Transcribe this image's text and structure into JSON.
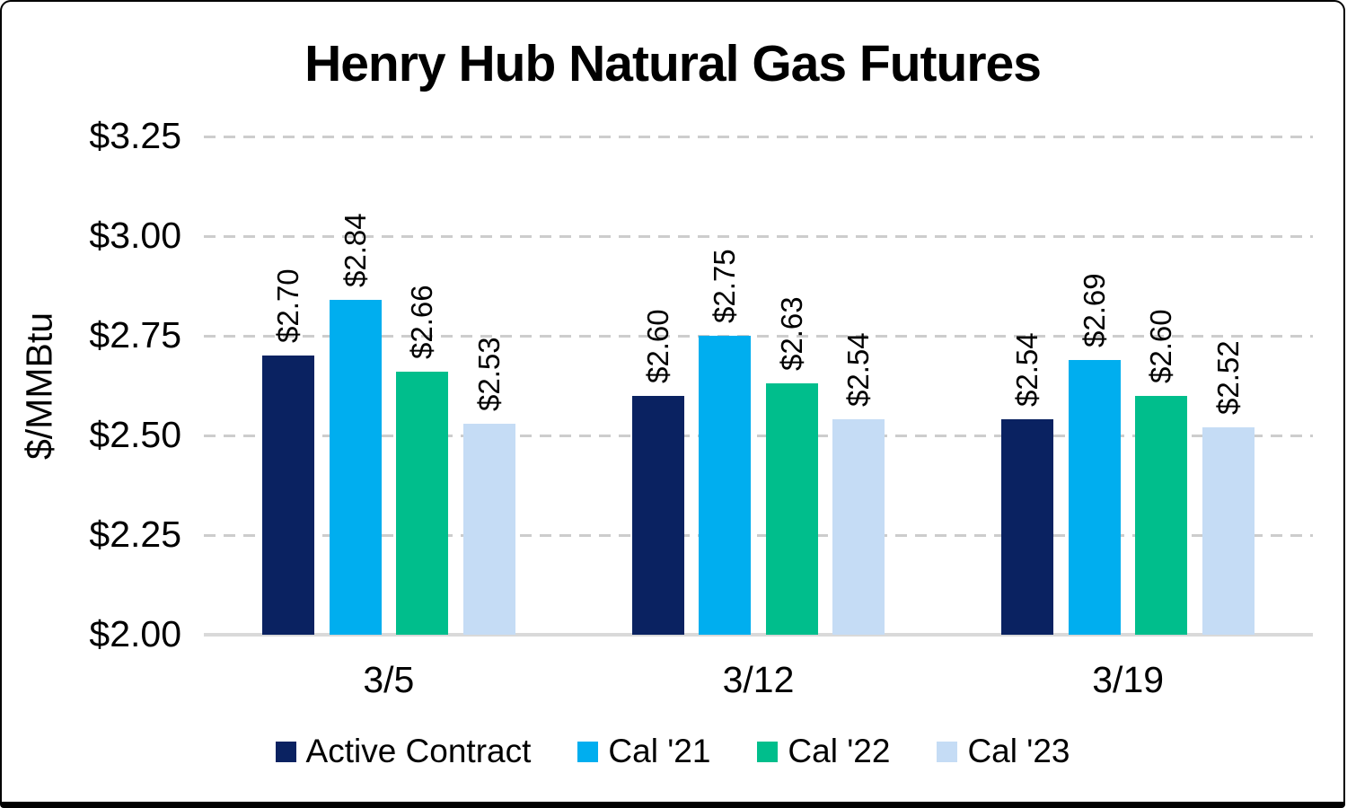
{
  "frame": {
    "background_color": "#FFFFFF",
    "border_color": "#000000"
  },
  "chart_data": {
    "type": "bar",
    "title": "Henry Hub Natural Gas Futures",
    "xlabel": "",
    "ylabel": "$/MMBtu",
    "categories": [
      "3/5",
      "3/12",
      "3/19"
    ],
    "series": [
      {
        "name": "Active Contract",
        "color": "#0A2261",
        "values": [
          2.7,
          2.6,
          2.54
        ],
        "labels": [
          "$2.70",
          "$2.60",
          "$2.54"
        ]
      },
      {
        "name": "Cal '21",
        "color": "#00AEEF",
        "values": [
          2.84,
          2.75,
          2.69
        ],
        "labels": [
          "$2.84",
          "$2.75",
          "$2.69"
        ]
      },
      {
        "name": "Cal '22",
        "color": "#00BE8C",
        "values": [
          2.66,
          2.63,
          2.6
        ],
        "labels": [
          "$2.66",
          "$2.63",
          "$2.60"
        ]
      },
      {
        "name": "Cal '23",
        "color": "#C5DCF5",
        "values": [
          2.53,
          2.54,
          2.52
        ],
        "labels": [
          "$2.53",
          "$2.54",
          "$2.52"
        ]
      }
    ],
    "ylim": [
      2.0,
      3.25
    ],
    "y_ticks": [
      {
        "value": 3.25,
        "label": "$3.25"
      },
      {
        "value": 3.0,
        "label": "$3.00"
      },
      {
        "value": 2.75,
        "label": "$2.75"
      },
      {
        "value": 2.5,
        "label": "$2.50"
      },
      {
        "value": 2.25,
        "label": "$2.25"
      },
      {
        "value": 2.0,
        "label": "$2.00"
      }
    ],
    "grid": "horizontal-dashed",
    "gridline_color": "#CDCDCD",
    "axis_line_color": "#D9D9D9",
    "legend_position": "bottom",
    "data_label_orientation": "vertical"
  }
}
